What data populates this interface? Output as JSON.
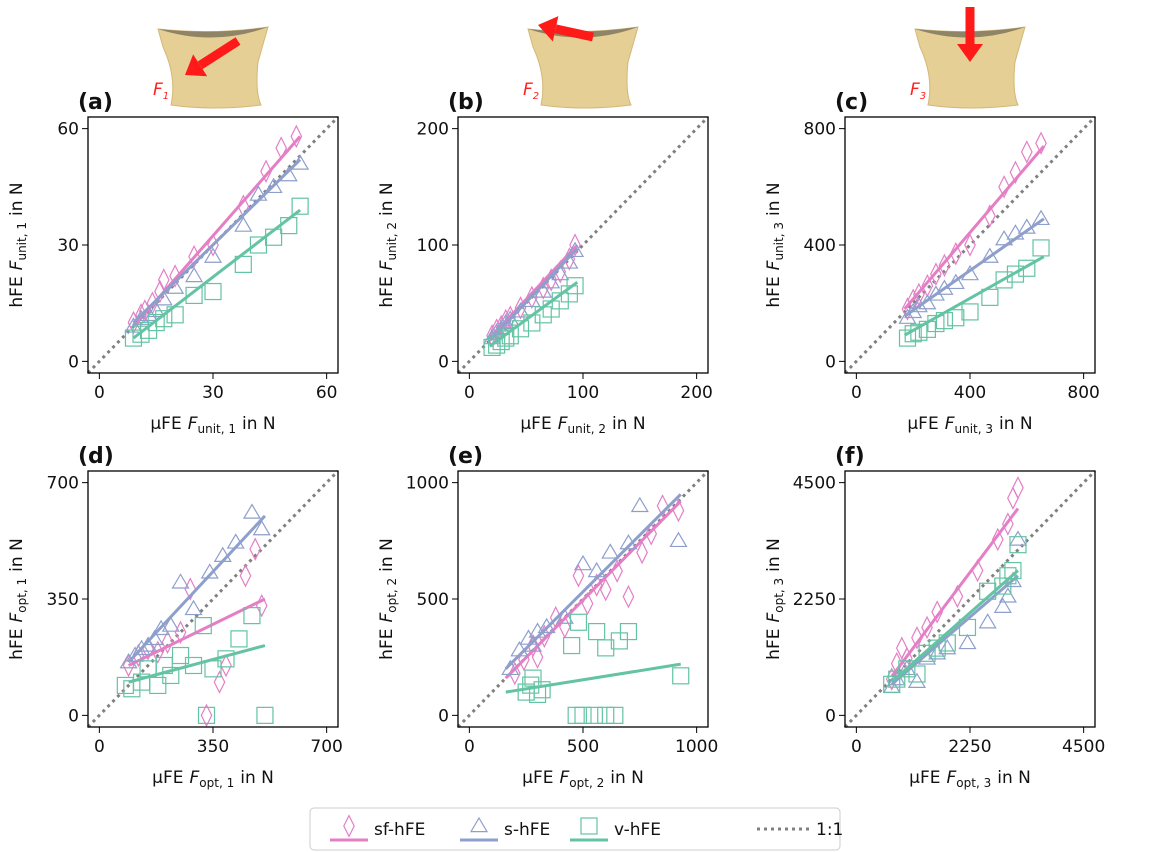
{
  "chart_data": [
    {
      "type": "scatter",
      "panel_label": "(a)",
      "force_label": {
        "symbol": "F",
        "subscript": "1"
      },
      "xlabel": {
        "text": "μFE",
        "symbol": "F",
        "subscript": "unit, 1",
        "unit": "in N"
      },
      "ylabel": {
        "text": "hFE",
        "symbol": "F",
        "subscript": "unit, 1",
        "unit": "in N"
      },
      "xlim": [
        -3,
        63
      ],
      "ylim": [
        -3,
        63
      ],
      "xticks": [
        0,
        30,
        60
      ],
      "yticks": [
        0,
        30,
        60
      ],
      "series": [
        {
          "x": [
            9,
            11,
            12,
            14,
            16,
            17,
            20,
            25,
            30,
            38,
            44,
            48,
            52
          ],
          "values": [
            10,
            12,
            13,
            15,
            18,
            21,
            22,
            27,
            30,
            40,
            49,
            55,
            58
          ],
          "fit_x": [
            9,
            53
          ],
          "fit_y": [
            9,
            58
          ]
        },
        {
          "x": [
            9,
            11,
            13,
            15,
            17,
            20,
            25,
            30,
            38,
            42,
            46,
            50,
            53
          ],
          "values": [
            9,
            11,
            12,
            13,
            16,
            19,
            22,
            27,
            35,
            43,
            45,
            48,
            51
          ],
          "fit_x": [
            9,
            53
          ],
          "fit_y": [
            10,
            52
          ]
        },
        {
          "x": [
            9,
            11,
            13,
            15,
            17,
            20,
            25,
            30,
            38,
            42,
            46,
            50,
            53
          ],
          "values": [
            6,
            7,
            8,
            10,
            11,
            12,
            17,
            18,
            25,
            30,
            32,
            35,
            40
          ],
          "fit_x": [
            9,
            53
          ],
          "fit_y": [
            6,
            39
          ]
        }
      ]
    },
    {
      "type": "scatter",
      "panel_label": "(b)",
      "force_label": {
        "symbol": "F",
        "subscript": "2"
      },
      "xlabel": {
        "text": "μFE",
        "symbol": "F",
        "subscript": "unit, 2",
        "unit": "in N"
      },
      "ylabel": {
        "text": "hFE",
        "symbol": "F",
        "subscript": "unit, 2",
        "unit": "in N"
      },
      "xlim": [
        -10,
        210
      ],
      "ylim": [
        -10,
        210
      ],
      "xticks": [
        0,
        100,
        200
      ],
      "yticks": [
        0,
        100,
        200
      ],
      "series": [
        {
          "x": [
            20,
            24,
            28,
            32,
            36,
            45,
            55,
            65,
            72,
            80,
            88,
            93
          ],
          "values": [
            22,
            27,
            30,
            35,
            38,
            46,
            55,
            63,
            70,
            77,
            88,
            100
          ],
          "fit_x": [
            18,
            95
          ],
          "fit_y": [
            20,
            100
          ]
        },
        {
          "x": [
            20,
            24,
            28,
            32,
            36,
            45,
            55,
            65,
            72,
            80,
            88,
            93
          ],
          "values": [
            20,
            25,
            28,
            33,
            36,
            43,
            52,
            60,
            68,
            75,
            85,
            95
          ],
          "fit_x": [
            18,
            95
          ],
          "fit_y": [
            18,
            97
          ]
        },
        {
          "x": [
            20,
            24,
            28,
            32,
            36,
            45,
            55,
            65,
            72,
            80,
            88,
            93
          ],
          "values": [
            12,
            14,
            17,
            20,
            22,
            28,
            33,
            40,
            45,
            52,
            58,
            65
          ],
          "fit_x": [
            18,
            95
          ],
          "fit_y": [
            13,
            68
          ]
        }
      ]
    },
    {
      "type": "scatter",
      "panel_label": "(c)",
      "force_label": {
        "symbol": "F",
        "subscript": "3"
      },
      "xlabel": {
        "text": "μFE",
        "symbol": "F",
        "subscript": "unit, 3",
        "unit": "in N"
      },
      "ylabel": {
        "text": "hFE",
        "symbol": "F",
        "subscript": "unit, 3",
        "unit": "in N"
      },
      "xlim": [
        -40,
        840
      ],
      "ylim": [
        -40,
        840
      ],
      "xticks": [
        0,
        400,
        800
      ],
      "yticks": [
        0,
        400,
        800
      ],
      "series": [
        {
          "x": [
            180,
            200,
            220,
            250,
            280,
            310,
            350,
            400,
            470,
            520,
            560,
            600,
            650
          ],
          "values": [
            180,
            210,
            230,
            260,
            300,
            330,
            370,
            400,
            500,
            600,
            650,
            720,
            750
          ],
          "fit_x": [
            170,
            660
          ],
          "fit_y": [
            180,
            740
          ]
        },
        {
          "x": [
            180,
            200,
            220,
            250,
            280,
            310,
            350,
            400,
            470,
            520,
            560,
            600,
            650
          ],
          "values": [
            150,
            170,
            190,
            200,
            230,
            250,
            270,
            300,
            360,
            420,
            440,
            460,
            490
          ],
          "fit_x": [
            170,
            660
          ],
          "fit_y": [
            155,
            490
          ]
        },
        {
          "x": [
            180,
            200,
            220,
            250,
            280,
            310,
            350,
            400,
            470,
            520,
            560,
            600,
            650
          ],
          "values": [
            80,
            95,
            100,
            110,
            130,
            140,
            150,
            170,
            220,
            280,
            300,
            320,
            390
          ],
          "fit_x": [
            170,
            660
          ],
          "fit_y": [
            90,
            360
          ]
        }
      ]
    },
    {
      "type": "scatter",
      "panel_label": "(d)",
      "xlabel": {
        "text": "μFE",
        "symbol": "F",
        "subscript": "opt, 1",
        "unit": "in N"
      },
      "ylabel": {
        "text": "hFE",
        "symbol": "F",
        "subscript": "opt, 1",
        "unit": "in N"
      },
      "xlim": [
        -35,
        735
      ],
      "ylim": [
        -35,
        735
      ],
      "xticks": [
        0,
        350,
        700
      ],
      "yticks": [
        0,
        350,
        700
      ],
      "series": [
        {
          "x": [
            90,
            120,
            150,
            180,
            210,
            250,
            280,
            330,
            370,
            390,
            450,
            480,
            500
          ],
          "values": [
            150,
            180,
            200,
            190,
            220,
            250,
            380,
            0,
            100,
            150,
            420,
            500,
            330
          ],
          "fit_x": [
            90,
            510
          ],
          "fit_y": [
            150,
            350
          ]
        },
        {
          "x": [
            90,
            110,
            130,
            150,
            170,
            190,
            220,
            250,
            290,
            340,
            380,
            420,
            470,
            500
          ],
          "values": [
            160,
            180,
            200,
            210,
            230,
            260,
            270,
            400,
            320,
            430,
            480,
            520,
            610,
            560
          ],
          "fit_x": [
            90,
            510
          ],
          "fit_y": [
            160,
            600
          ]
        },
        {
          "x": [
            80,
            100,
            130,
            150,
            180,
            200,
            220,
            250,
            290,
            320,
            330,
            350,
            390,
            430,
            470,
            510
          ],
          "values": [
            90,
            80,
            100,
            140,
            90,
            150,
            120,
            180,
            150,
            270,
            0,
            140,
            170,
            230,
            300,
            0
          ],
          "fit_x": [
            90,
            510
          ],
          "fit_y": [
            100,
            210
          ]
        }
      ]
    },
    {
      "type": "scatter",
      "panel_label": "(e)",
      "xlabel": {
        "text": "μFE",
        "symbol": "F",
        "subscript": "opt, 2",
        "unit": "in N"
      },
      "ylabel": {
        "text": "hFE",
        "symbol": "F",
        "subscript": "opt, 2",
        "unit": "in N"
      },
      "xlim": [
        -50,
        1050
      ],
      "ylim": [
        -50,
        1050
      ],
      "xticks": [
        0,
        500,
        1000
      ],
      "yticks": [
        0,
        500,
        1000
      ],
      "series": [
        {
          "x": [
            200,
            240,
            280,
            300,
            330,
            380,
            420,
            480,
            520,
            560,
            600,
            650,
            700,
            760,
            800,
            850,
            920
          ],
          "values": [
            180,
            240,
            300,
            250,
            340,
            420,
            380,
            600,
            480,
            560,
            540,
            620,
            510,
            700,
            780,
            900,
            880
          ],
          "fit_x": [
            160,
            930
          ],
          "fit_y": [
            160,
            920
          ]
        },
        {
          "x": [
            180,
            220,
            260,
            280,
            300,
            340,
            420,
            500,
            560,
            620,
            700,
            750,
            920
          ],
          "values": [
            200,
            280,
            330,
            300,
            360,
            380,
            420,
            650,
            620,
            700,
            740,
            900,
            750
          ],
          "fit_x": [
            160,
            930
          ],
          "fit_y": [
            200,
            950
          ]
        },
        {
          "x": [
            250,
            270,
            280,
            300,
            320,
            450,
            480,
            560,
            600,
            660,
            700,
            930,
            470,
            500,
            550,
            600,
            640
          ],
          "values": [
            100,
            130,
            160,
            90,
            110,
            300,
            400,
            360,
            290,
            320,
            360,
            170,
            0,
            0,
            0,
            0,
            0
          ],
          "fit_x": [
            160,
            930
          ],
          "fit_y": [
            100,
            220
          ]
        }
      ]
    },
    {
      "type": "scatter",
      "panel_label": "(f)",
      "xlabel": {
        "text": "μFE",
        "symbol": "F",
        "subscript": "opt, 3",
        "unit": "in N"
      },
      "ylabel": {
        "text": "hFE",
        "symbol": "F",
        "subscript": "opt, 3",
        "unit": "in N"
      },
      "xlim": [
        -225,
        4725
      ],
      "ylim": [
        -225,
        4725
      ],
      "xticks": [
        0,
        2250,
        4500
      ],
      "yticks": [
        0,
        2250,
        4500
      ],
      "series": [
        {
          "x": [
            700,
            800,
            900,
            1000,
            1200,
            1400,
            1600,
            2000,
            2400,
            2800,
            3000,
            3100,
            3200
          ],
          "values": [
            700,
            1000,
            1300,
            1100,
            1500,
            1700,
            2000,
            2300,
            2800,
            3400,
            3700,
            4200,
            4400
          ],
          "fit_x": [
            700,
            3200
          ],
          "fit_y": [
            750,
            4000
          ]
        },
        {
          "x": [
            700,
            800,
            1000,
            1200,
            1400,
            1600,
            1800,
            2200,
            2600,
            2900,
            3000,
            3100,
            3200
          ],
          "values": [
            550,
            700,
            900,
            650,
            1100,
            1200,
            1300,
            1400,
            1800,
            2100,
            2300,
            2600,
            3400
          ],
          "fit_x": [
            700,
            3200
          ],
          "fit_y": [
            600,
            2700
          ]
        },
        {
          "x": [
            700,
            800,
            1000,
            1200,
            1400,
            1600,
            1800,
            2200,
            2600,
            2900,
            3000,
            3100,
            3200
          ],
          "values": [
            600,
            700,
            900,
            800,
            1200,
            1300,
            1400,
            1700,
            2400,
            2500,
            2700,
            2800,
            3300
          ],
          "fit_x": [
            700,
            3200
          ],
          "fit_y": [
            650,
            2800
          ]
        }
      ]
    }
  ],
  "legend": [
    {
      "name": "sf-hFE",
      "color": "#e47fc6",
      "marker": "diamond"
    },
    {
      "name": "s-hFE",
      "color": "#8e9fcc",
      "marker": "triangle"
    },
    {
      "name": "v-hFE",
      "color": "#63c3a3",
      "marker": "square"
    }
  ],
  "reference_line": {
    "name": "1:1",
    "color": "#808080"
  }
}
